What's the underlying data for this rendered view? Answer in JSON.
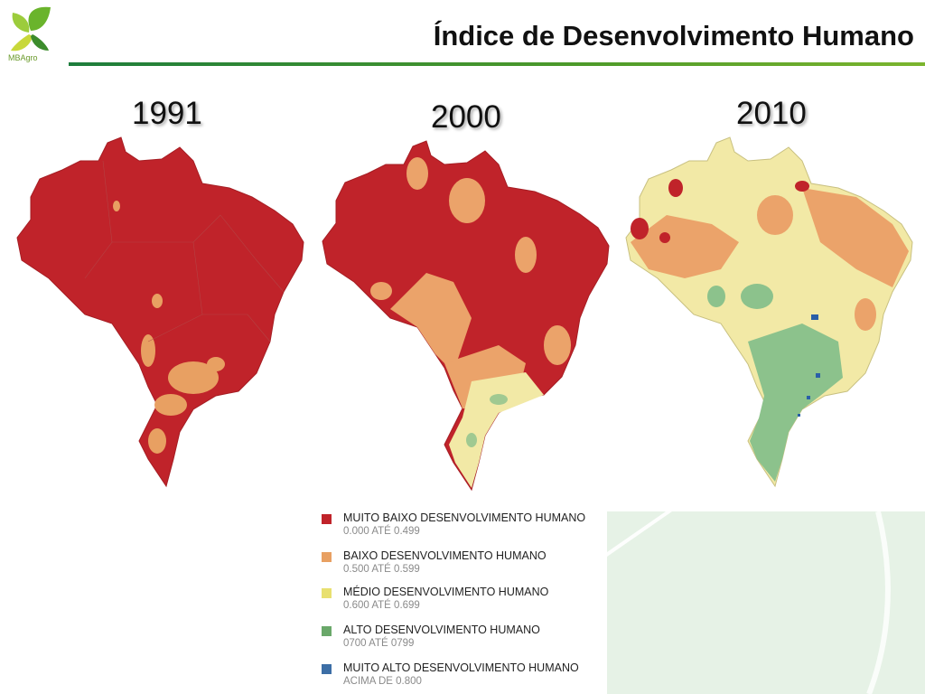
{
  "header": {
    "title": "Índice de Desenvolvimento Humano",
    "logo_text": "MBAgro",
    "logo_icon": "leaf-logo-icon"
  },
  "maps": [
    {
      "year": "1991",
      "dominant_color": "#c0232a"
    },
    {
      "year": "2000",
      "dominant_color": "#c0232a"
    },
    {
      "year": "2010",
      "dominant_color": "#f2e9a6"
    }
  ],
  "legend": {
    "items": [
      {
        "label": "MUITO BAIXO DESENVOLVIMENTO HUMANO",
        "range": "0.000 ATÉ 0.499",
        "color": "#c0232a"
      },
      {
        "label": "BAIXO DESENVOLVIMENTO HUMANO",
        "range": "0.500 ATÉ 0.599",
        "color": "#e8a062"
      },
      {
        "label": "MÉDIO DESENVOLVIMENTO HUMANO",
        "range": "0.600 ATÉ 0.699",
        "color": "#e8e070"
      },
      {
        "label": "ALTO DESENVOLVIMENTO HUMANO",
        "range": "0700 ATÉ 0799",
        "color": "#6aa86a"
      },
      {
        "label": "MUITO ALTO DESENVOLVIMENTO HUMANO",
        "range": "ACIMA DE 0.800",
        "color": "#3c6ea6"
      }
    ]
  },
  "colors": {
    "accent_green": "#4d9a2a",
    "muito_baixo": "#c0232a",
    "baixo": "#e8a062",
    "medio": "#f2e9a6",
    "alto": "#8cc28c",
    "muito_alto": "#2a5fa8"
  }
}
